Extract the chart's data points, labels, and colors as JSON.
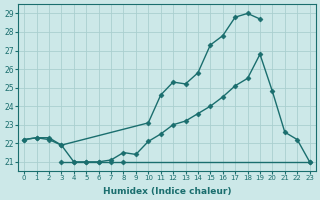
{
  "xlabel": "Humidex (Indice chaleur)",
  "bg_color": "#cce8e8",
  "grid_color": "#aacfcf",
  "line_color": "#1a6e6e",
  "xlim": [
    -0.5,
    23.5
  ],
  "ylim": [
    20.5,
    29.5
  ],
  "yticks": [
    21,
    22,
    23,
    24,
    25,
    26,
    27,
    28,
    29
  ],
  "xticks": [
    0,
    1,
    2,
    3,
    4,
    5,
    6,
    7,
    8,
    9,
    10,
    11,
    12,
    13,
    14,
    15,
    16,
    17,
    18,
    19,
    20,
    21,
    22,
    23
  ],
  "line1_x": [
    0,
    1,
    2,
    3,
    10,
    11,
    12,
    13,
    14,
    15,
    16,
    17,
    18,
    19
  ],
  "line1_y": [
    22.2,
    22.3,
    22.3,
    21.9,
    23.1,
    24.6,
    25.3,
    25.2,
    25.8,
    27.3,
    27.8,
    28.8,
    29.0,
    28.7
  ],
  "line2_x": [
    0,
    1,
    2,
    3,
    4,
    5,
    6,
    7,
    8,
    9,
    10,
    11,
    12,
    13,
    14,
    15,
    16,
    17,
    18,
    19,
    20,
    21,
    22,
    23
  ],
  "line2_y": [
    22.2,
    22.3,
    22.2,
    21.9,
    21.0,
    21.0,
    21.0,
    21.1,
    21.5,
    21.4,
    22.1,
    22.5,
    23.0,
    23.2,
    23.6,
    24.0,
    24.5,
    25.1,
    25.5,
    26.8,
    24.8,
    22.6,
    22.2,
    21.0
  ],
  "line3_x": [
    3,
    4,
    5,
    6,
    7,
    8,
    23
  ],
  "line3_y": [
    21.0,
    21.0,
    21.0,
    21.0,
    21.0,
    21.0,
    21.0
  ],
  "marker": "D",
  "markersize": 2.5,
  "linewidth": 1.0
}
